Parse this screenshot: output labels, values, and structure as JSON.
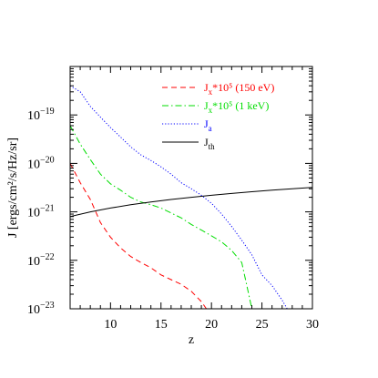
{
  "chart_data": {
    "type": "line",
    "xlabel": "z",
    "ylabel": "J [ergs/cm²/s/Hz/sr]",
    "x_ticks": [
      10,
      15,
      20,
      25,
      30
    ],
    "x_tick_labels": [
      "10",
      "15",
      "20",
      "25",
      "30"
    ],
    "y_ticks": [
      -23,
      -22,
      -21,
      -20,
      -19
    ],
    "y_tick_base": "10",
    "y_tick_exponents": [
      "−23",
      "−22",
      "−21",
      "−20",
      "−19"
    ],
    "xlim": [
      6,
      30
    ],
    "ylim": [
      1e-23,
      1e-18
    ],
    "y_scale": "log",
    "grid": false,
    "legend_position": "top-right",
    "series": [
      {
        "name": "Jx*10⁵ (150 eV)",
        "legend": {
          "base": "J",
          "sub": "x",
          "rest": "*10⁵ (150 eV)"
        },
        "color": "#ff0000",
        "style": "dashed",
        "points": [
          [
            6,
            1e-20
          ],
          [
            7,
            4e-21
          ],
          [
            8,
            1.8e-21
          ],
          [
            9,
            6e-22
          ],
          [
            10,
            3e-22
          ],
          [
            11,
            1.8e-22
          ],
          [
            12,
            1.2e-22
          ],
          [
            13,
            9e-23
          ],
          [
            14,
            7e-23
          ],
          [
            15,
            5e-23
          ],
          [
            16,
            4e-23
          ],
          [
            17,
            3.2e-23
          ],
          [
            18,
            2.3e-23
          ],
          [
            19,
            1.4e-23
          ],
          [
            19.5,
            1e-23
          ]
        ]
      },
      {
        "name": "Jx*10⁵ (1 keV)",
        "legend": {
          "base": "J",
          "sub": "x",
          "rest": "*10⁵ (1 keV)"
        },
        "color": "#00dd00",
        "style": "dashdot",
        "points": [
          [
            6,
            6e-20
          ],
          [
            7,
            2.5e-20
          ],
          [
            8,
            1.2e-20
          ],
          [
            9,
            6e-21
          ],
          [
            10,
            3.8e-21
          ],
          [
            11,
            2.8e-21
          ],
          [
            12,
            2e-21
          ],
          [
            13,
            1.6e-21
          ],
          [
            14,
            1.4e-21
          ],
          [
            15,
            1.2e-21
          ],
          [
            16,
            9.5e-22
          ],
          [
            17,
            7.5e-22
          ],
          [
            18,
            5.5e-22
          ],
          [
            19,
            4.2e-22
          ],
          [
            20,
            3.2e-22
          ],
          [
            21,
            2.4e-22
          ],
          [
            22,
            1.6e-22
          ],
          [
            23,
            9e-23
          ],
          [
            23.5,
            3e-23
          ],
          [
            24,
            1e-23
          ]
        ]
      },
      {
        "name": "Ja",
        "legend": {
          "base": "J",
          "sub": "a",
          "rest": ""
        },
        "color": "#0000ff",
        "style": "dotted",
        "points": [
          [
            6,
            4e-19
          ],
          [
            7,
            3e-19
          ],
          [
            8,
            1.5e-19
          ],
          [
            9,
            9e-20
          ],
          [
            10,
            5.5e-20
          ],
          [
            11,
            3.5e-20
          ],
          [
            12,
            2.2e-20
          ],
          [
            13,
            1.5e-20
          ],
          [
            14,
            1.15e-20
          ],
          [
            15,
            8.5e-21
          ],
          [
            16,
            6e-21
          ],
          [
            17,
            4e-21
          ],
          [
            18,
            3e-21
          ],
          [
            19,
            2.2e-21
          ],
          [
            20,
            1.5e-21
          ],
          [
            21,
            9e-22
          ],
          [
            22,
            5e-22
          ],
          [
            23,
            2.6e-22
          ],
          [
            24,
            1.3e-22
          ],
          [
            25,
            5e-23
          ],
          [
            26,
            3e-23
          ],
          [
            27,
            1.5e-23
          ],
          [
            27.5,
            1e-23
          ]
        ]
      },
      {
        "name": "Jth",
        "legend": {
          "base": "J",
          "sub": "th",
          "rest": ""
        },
        "color": "#000000",
        "style": "solid",
        "points": [
          [
            6,
            8e-22
          ],
          [
            8,
            1e-21
          ],
          [
            10,
            1.2e-21
          ],
          [
            12,
            1.4e-21
          ],
          [
            14,
            1.6e-21
          ],
          [
            16,
            1.8e-21
          ],
          [
            18,
            2e-21
          ],
          [
            20,
            2.2e-21
          ],
          [
            22,
            2.4e-21
          ],
          [
            24,
            2.6e-21
          ],
          [
            26,
            2.8e-21
          ],
          [
            28,
            3e-21
          ],
          [
            30,
            3.2e-21
          ]
        ]
      }
    ]
  }
}
